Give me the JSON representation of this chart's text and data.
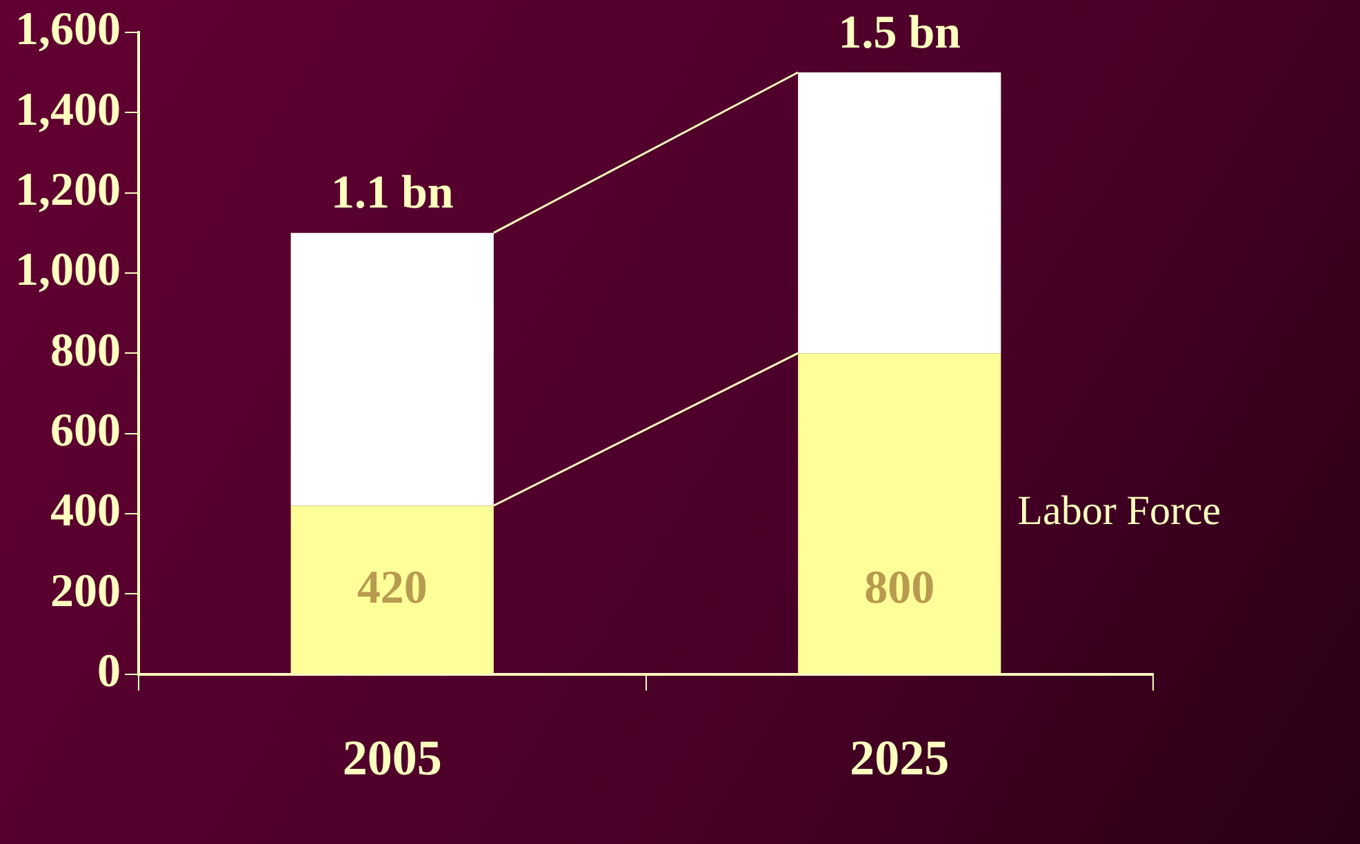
{
  "chart_data": {
    "type": "bar",
    "stacked": true,
    "categories": [
      "2005",
      "2025"
    ],
    "series": [
      {
        "name": "Labor Force",
        "color": "#ffff99",
        "values": [
          420,
          800
        ],
        "value_labels": [
          "420",
          "800"
        ]
      },
      {
        "color": "#ffffff",
        "values": [
          680,
          700
        ]
      }
    ],
    "totals": [
      "1.1 bn",
      "1.5 bn"
    ],
    "ylim": [
      0,
      1600
    ],
    "yticks": [
      0,
      200,
      400,
      600,
      800,
      {
        "value": 1000,
        "label": "1,000"
      },
      {
        "value": 1200,
        "label": "1,200"
      },
      {
        "value": 1400,
        "label": "1,400"
      },
      {
        "value": 1600,
        "label": "1,600"
      }
    ],
    "grid": false,
    "legend": false
  }
}
